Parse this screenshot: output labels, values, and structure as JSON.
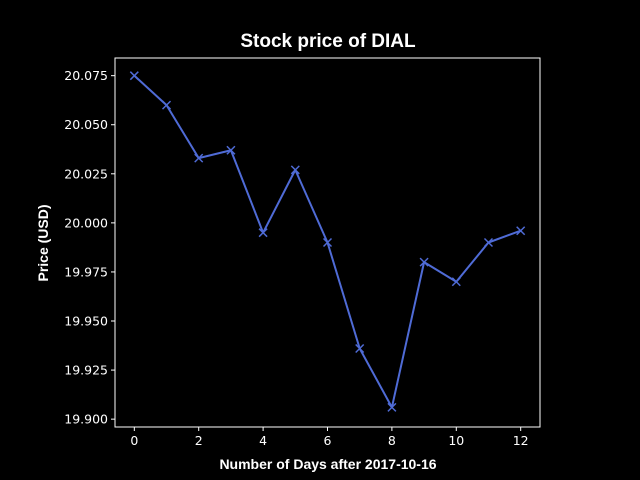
{
  "chart_data": {
    "type": "line",
    "title": "Stock price of DIAL",
    "xlabel": "Number of Days after 2017-10-16",
    "ylabel": "Price (USD)",
    "xlim": [
      -0.6,
      12.6
    ],
    "ylim": [
      19.896,
      20.084
    ],
    "xticks": [
      0,
      2,
      4,
      6,
      8,
      10,
      12
    ],
    "yticks": [
      19.9,
      19.925,
      19.95,
      19.975,
      20.0,
      20.025,
      20.05,
      20.075
    ],
    "ytick_labels": [
      "19.900",
      "19.925",
      "19.950",
      "19.975",
      "20.000",
      "20.025",
      "20.050",
      "20.075"
    ],
    "grid": false,
    "series": [
      {
        "marker": "x",
        "color": "#4f6bd6",
        "x": [
          0,
          1,
          2,
          3,
          4,
          5,
          6,
          7,
          8,
          9,
          10,
          11,
          12
        ],
        "y": [
          20.075,
          20.06,
          20.033,
          20.037,
          19.995,
          20.027,
          19.99,
          19.936,
          19.906,
          19.98,
          19.97,
          19.99,
          19.996
        ]
      }
    ],
    "colors": {
      "background": "#000000",
      "axes": "#ffffff",
      "text": "#ffffff"
    }
  }
}
